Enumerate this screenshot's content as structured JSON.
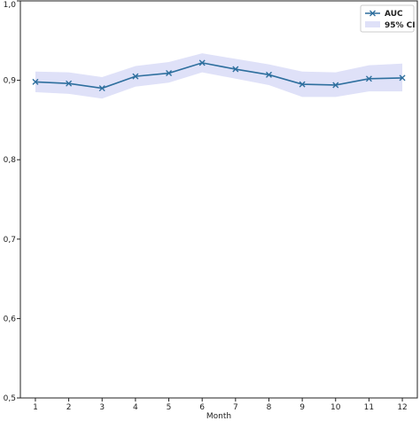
{
  "chart_data": {
    "type": "line",
    "title": "",
    "xlabel": "Month",
    "ylabel": "",
    "x": [
      1,
      2,
      3,
      4,
      5,
      6,
      7,
      8,
      9,
      10,
      11,
      12
    ],
    "x_tick_labels": [
      "1",
      "2",
      "3",
      "4",
      "5",
      "6",
      "7",
      "8",
      "9",
      "10",
      "11",
      "12"
    ],
    "y_tick_values": [
      0.5,
      0.6,
      0.7,
      0.8,
      0.9,
      1.0
    ],
    "y_tick_labels": [
      "0,5",
      "0,6",
      "0,7",
      "0,8",
      "0,9",
      "1,0"
    ],
    "xlim": [
      0.55,
      12.45
    ],
    "ylim": [
      0.5,
      1.0
    ],
    "grid": false,
    "legend_position": "top-right",
    "series": [
      {
        "name": "AUC",
        "marker": "x",
        "color": "#2e6f9e",
        "values": [
          0.898,
          0.896,
          0.89,
          0.905,
          0.909,
          0.922,
          0.914,
          0.907,
          0.895,
          0.894,
          0.902,
          0.903
        ]
      }
    ],
    "ci_band": {
      "name": "95% CI",
      "color": "#dfe1f8",
      "lower": [
        0.885,
        0.883,
        0.877,
        0.892,
        0.897,
        0.91,
        0.902,
        0.894,
        0.879,
        0.879,
        0.886,
        0.886
      ],
      "upper": [
        0.911,
        0.91,
        0.904,
        0.918,
        0.923,
        0.934,
        0.927,
        0.92,
        0.911,
        0.91,
        0.919,
        0.921
      ]
    }
  }
}
